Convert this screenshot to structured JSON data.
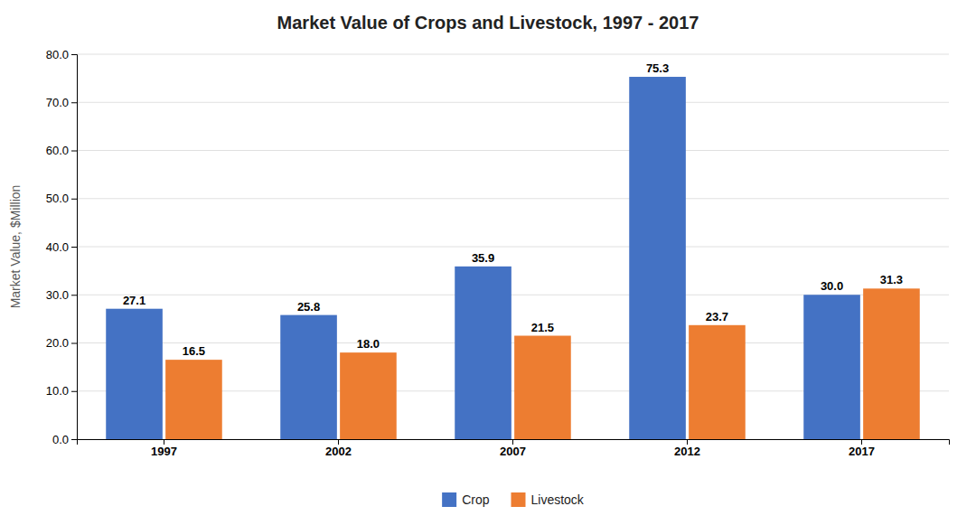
{
  "chart_data": {
    "type": "bar",
    "title": "Market Value of Crops and Livestock, 1997 - 2017",
    "ylabel": "Market Value, $Million",
    "categories": [
      "1997",
      "2002",
      "2007",
      "2012",
      "2017"
    ],
    "series": [
      {
        "name": "Crop",
        "color": "#4472C4",
        "values": [
          27.1,
          25.8,
          35.9,
          75.3,
          30.0
        ],
        "value_labels": [
          "27.1",
          "25.8",
          "35.9",
          "75.3",
          "30.0"
        ]
      },
      {
        "name": "Livestock",
        "color": "#ED7D31",
        "values": [
          16.5,
          18.0,
          21.5,
          23.7,
          31.3
        ],
        "value_labels": [
          "16.5",
          "18.0",
          "21.5",
          "23.7",
          "31.3"
        ]
      }
    ],
    "ylim": [
      0,
      80
    ],
    "yticks": [
      {
        "value": 0.0,
        "label": "0.0"
      },
      {
        "value": 10.0,
        "label": "10.0"
      },
      {
        "value": 20.0,
        "label": "20.0"
      },
      {
        "value": 30.0,
        "label": "30.0"
      },
      {
        "value": 40.0,
        "label": "40.0"
      },
      {
        "value": 50.0,
        "label": "50.0"
      },
      {
        "value": 60.0,
        "label": "60.0"
      },
      {
        "value": 70.0,
        "label": "70.0"
      },
      {
        "value": 80.0,
        "label": "80.0"
      }
    ],
    "grid": true,
    "legend": "bottom",
    "data_labels": true
  }
}
